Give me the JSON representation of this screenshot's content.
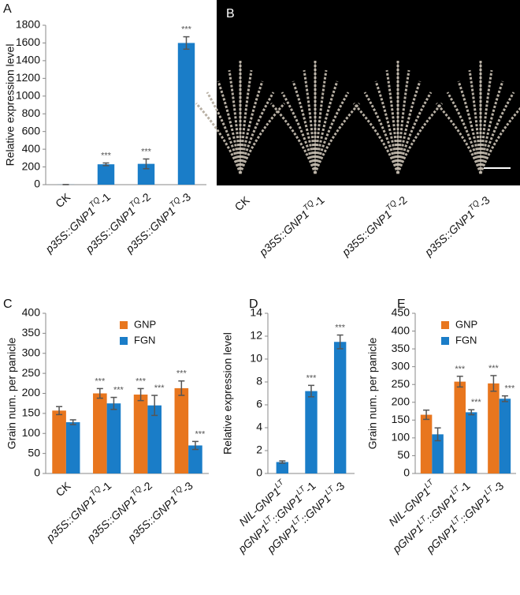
{
  "chart_data": [
    {
      "type": "bar",
      "label": "A",
      "ylabel": "Relative expression level",
      "categories": [
        {
          "text": "CK"
        },
        {
          "text": "p35S::GNP1",
          "sup": "TQ",
          "end": "-1"
        },
        {
          "text": "p35S::GNP1",
          "sup": "TQ",
          "end": "-2"
        },
        {
          "text": "p35S::GNP1",
          "sup": "TQ",
          "end": "-3"
        }
      ],
      "values": [
        1,
        230,
        235,
        1600
      ],
      "errors": [
        0,
        15,
        55,
        70
      ],
      "significance": [
        null,
        "***",
        "***",
        "***"
      ],
      "color": "#1a7dc8",
      "ylim": [
        0,
        1800
      ],
      "yticks": [
        0,
        200,
        400,
        600,
        800,
        1000,
        1200,
        1400,
        1600,
        1800
      ]
    },
    {
      "type": "image",
      "label": "B",
      "categories": [
        {
          "text": "CK"
        },
        {
          "text": "p35S::GNP1",
          "sup": "TQ",
          "end": "-1"
        },
        {
          "text": "p35S::GNP1",
          "sup": "TQ",
          "end": "-2"
        },
        {
          "text": "p35S::GNP1",
          "sup": "TQ",
          "end": "-3"
        }
      ]
    },
    {
      "type": "bar",
      "label": "C",
      "ylabel": "Grain num. per panicle",
      "legend": "upper left",
      "categories": [
        {
          "text": "CK"
        },
        {
          "text": "p35S::GNP1",
          "sup": "TQ",
          "end": "-1"
        },
        {
          "text": "p35S::GNP1",
          "sup": "TQ",
          "end": "-2"
        },
        {
          "text": "p35S::GNP1",
          "sup": "TQ",
          "end": "-3"
        }
      ],
      "series": [
        {
          "name": "GNP",
          "color": "#e8761e",
          "values": [
            157,
            200,
            197,
            213
          ],
          "errors": [
            10,
            12,
            15,
            18
          ],
          "significance": [
            null,
            "***",
            "***",
            "***"
          ]
        },
        {
          "name": "FGN",
          "color": "#1a7dc8",
          "values": [
            128,
            175,
            170,
            70
          ],
          "errors": [
            6,
            15,
            25,
            10
          ],
          "significance": [
            null,
            "***",
            "***",
            "***"
          ]
        }
      ],
      "ylim": [
        0,
        400
      ],
      "yticks": [
        0,
        50,
        100,
        150,
        200,
        250,
        300,
        350,
        400
      ]
    },
    {
      "type": "bar",
      "label": "D",
      "ylabel": "Relative expression level",
      "categories": [
        {
          "text": "NIL-GNP1",
          "sup": "LT"
        },
        {
          "text": "pGNP1",
          "sup": "LT",
          "end": "::GNP1",
          "sup2": "LT",
          "end2": "-1"
        },
        {
          "text": "pGNP1",
          "sup": "LT",
          "end": "::GNP1",
          "sup2": "LT",
          "end2": "-3"
        }
      ],
      "values": [
        1.0,
        7.2,
        11.5
      ],
      "errors": [
        0.1,
        0.5,
        0.6
      ],
      "significance": [
        null,
        "***",
        "***"
      ],
      "color": "#1a7dc8",
      "ylim": [
        0,
        14
      ],
      "yticks": [
        0,
        2,
        4,
        6,
        8,
        10,
        12,
        14
      ]
    },
    {
      "type": "bar",
      "label": "E",
      "ylabel": "Grain num. per panicle",
      "legend": "upper left",
      "categories": [
        {
          "text": "NIL-GNP1",
          "sup": "LT"
        },
        {
          "text": "pGNP1",
          "sup": "LT",
          "end": "::GNP1",
          "sup2": "LT",
          "end2": "-1"
        },
        {
          "text": "pGNP1",
          "sup": "LT",
          "end": "::GNP1",
          "sup2": "LT",
          "end2": "-3"
        }
      ],
      "series": [
        {
          "name": "GNP",
          "color": "#e8761e",
          "values": [
            165,
            258,
            253
          ],
          "errors": [
            13,
            15,
            22
          ],
          "significance": [
            null,
            "***",
            "***"
          ]
        },
        {
          "name": "FGN",
          "color": "#1a7dc8",
          "values": [
            110,
            172,
            210
          ],
          "errors": [
            18,
            7,
            8
          ],
          "significance": [
            null,
            "***",
            "***"
          ]
        }
      ],
      "ylim": [
        0,
        450
      ],
      "yticks": [
        0,
        50,
        100,
        150,
        200,
        250,
        300,
        350,
        400,
        450
      ]
    }
  ]
}
